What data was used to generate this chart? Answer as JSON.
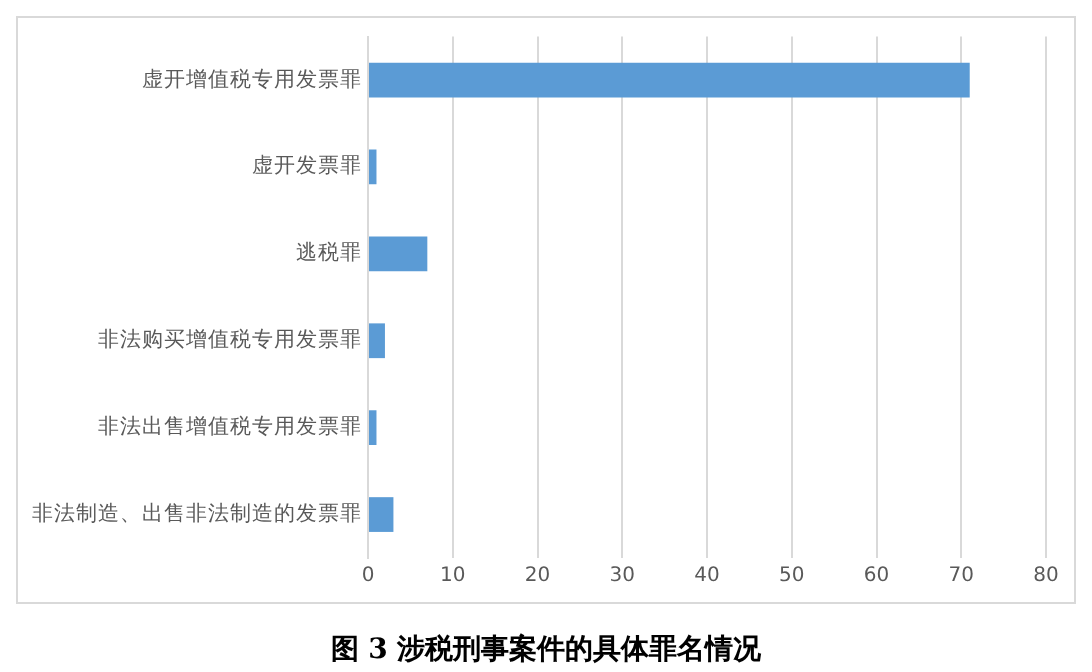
{
  "chart_data": {
    "type": "bar",
    "orientation": "horizontal",
    "title": "图 3  涉税刑事案件的具体罪名情况",
    "categories": [
      "虚开增值税专用发票罪",
      "虚开发票罪",
      "逃税罪",
      "非法购买增值税专用发票罪",
      "非法出售增值税专用发票罪",
      "非法制造、出售非法制造的发票罪"
    ],
    "values": [
      71,
      1,
      7,
      2,
      1,
      3
    ],
    "color": "#5b9bd5",
    "xlim": [
      0,
      80
    ],
    "xticks": [
      0,
      10,
      20,
      30,
      40,
      50,
      60,
      70,
      80
    ],
    "grid": "x",
    "legend": false
  }
}
